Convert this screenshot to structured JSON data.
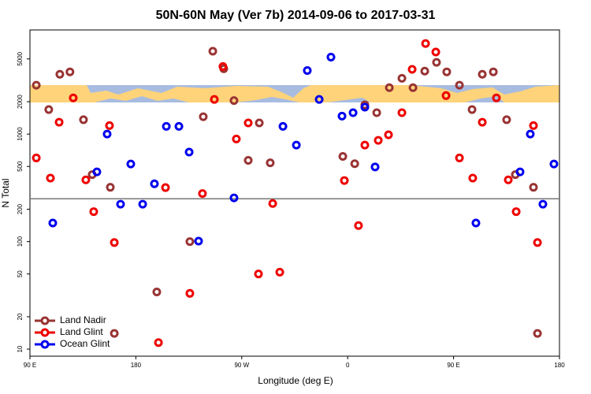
{
  "chart_data": {
    "type": "scatter",
    "title": "50N-60N May (Ver 7b)   2014-09-06 to 2017-03-31",
    "xlabel": "Longitude (deg E)",
    "ylabel": "N Total",
    "log_y": true,
    "xlim": [
      90,
      540
    ],
    "ylim": [
      8.6,
      9300
    ],
    "xticks": [
      {
        "value": 90,
        "label": "90 E"
      },
      180,
      {
        "value": 270,
        "label": "90 W"
      },
      {
        "value": 360,
        "label": "0"
      },
      {
        "value": 450,
        "label": "90 E"
      },
      {
        "value": 540,
        "label": "180"
      }
    ],
    "yticks": [
      10,
      20,
      50,
      100,
      200,
      500,
      1000,
      2000,
      5000
    ],
    "hline": 250,
    "legend": "lower left",
    "series": [
      {
        "name": "Land Nadir",
        "color": "#993333",
        "x": [
          95.4,
          106,
          115.4,
          124,
          135.5,
          142.9,
          158.3,
          161.7,
          197.8,
          225.9,
          237.3,
          245.4,
          254.7,
          263.4,
          275.5,
          284.9,
          294.2,
          355.9,
          366,
          374.6,
          384.7,
          395.4,
          406.1,
          415.5,
          425.5,
          435.5,
          444.2,
          455,
          465.7,
          474.4,
          483.8,
          495.1,
          502.5,
          517.9,
          521.3
        ],
        "values": [
          2850,
          1690,
          3600,
          3790,
          1360,
          420,
          320,
          14,
          34,
          100,
          1450,
          5900,
          4050,
          2050,
          570,
          1270,
          540,
          620,
          530,
          1870,
          1580,
          2700,
          3300,
          2700,
          3850,
          4650,
          3790,
          2850,
          1690,
          3600,
          3790,
          1360,
          420,
          320,
          14
        ]
      },
      {
        "name": "Land Glint",
        "color": "#ee0000",
        "x": [
          95.4,
          107.4,
          114.8,
          126.8,
          137.5,
          144.2,
          157.6,
          161.7,
          199.2,
          205.2,
          225.9,
          236.6,
          246.7,
          254,
          265.4,
          275.5,
          284.2,
          296.3,
          302.3,
          357.2,
          369.2,
          374.6,
          386,
          394.7,
          406.1,
          414.8,
          426.2,
          434.9,
          443.6,
          455,
          466.3,
          474.4,
          486.4,
          496.5,
          503.2,
          517.9,
          521.3
        ],
        "values": [
          600,
          390,
          1290,
          2170,
          375,
          190,
          1200,
          98,
          11.5,
          318,
          33,
          280,
          2100,
          4250,
          900,
          1270,
          50,
          226,
          52,
          370,
          141,
          790,
          875,
          985,
          1580,
          4000,
          6950,
          5800,
          2280,
          600,
          390,
          1290,
          2170,
          375,
          190,
          1200,
          98
        ]
      },
      {
        "name": "Ocean Glint",
        "color": "#0000ee",
        "x": [
          109.4,
          146.9,
          155.6,
          167,
          175.7,
          185.8,
          195.8,
          205.9,
          216.6,
          225.3,
          233.3,
          263.4,
          305,
          316.4,
          325.7,
          335.8,
          345.8,
          355.2,
          364.6,
          374.6,
          383.3,
          469,
          506.5,
          515.2,
          525.9,
          535.3
        ],
        "values": [
          149,
          445,
          1000,
          223,
          527,
          223,
          345,
          1180,
          1180,
          680,
          101,
          255,
          1180,
          790,
          3900,
          2100,
          5200,
          1470,
          1580,
          1780,
          495,
          149,
          445,
          1000,
          223,
          527
        ]
      }
    ]
  }
}
